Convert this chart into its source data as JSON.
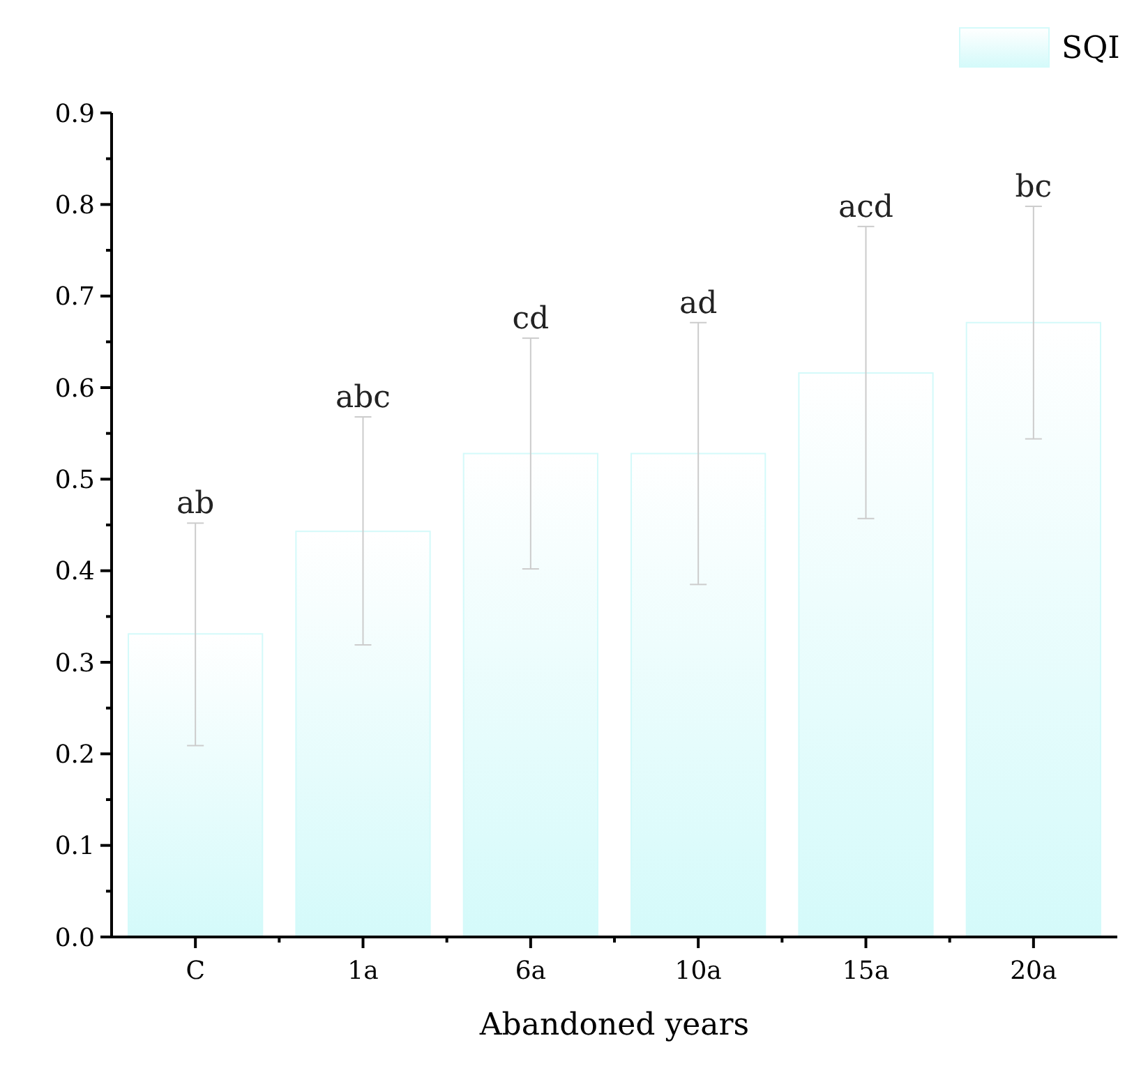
{
  "chart_data": {
    "type": "bar",
    "xlabel": "Abandoned years",
    "categories": [
      "C",
      "1a",
      "6a",
      "10a",
      "15a",
      "20a"
    ],
    "series": [
      {
        "name": "SQI",
        "color": "#d4fafa",
        "values": [
          0.331,
          0.443,
          0.528,
          0.528,
          0.616,
          0.671
        ],
        "errors": [
          [
            0.209,
            0.452
          ],
          [
            0.319,
            0.568
          ],
          [
            0.402,
            0.654
          ],
          [
            0.385,
            0.671
          ],
          [
            0.457,
            0.776
          ],
          [
            0.544,
            0.798
          ]
        ]
      }
    ],
    "annotations": [
      {
        "text": "ab",
        "x": "C",
        "y": 0.452
      },
      {
        "text": "abc",
        "x": "1a",
        "y": 0.568
      },
      {
        "text": "cd",
        "x": "6a",
        "y": 0.654
      },
      {
        "text": "ad",
        "x": "10a",
        "y": 0.671
      },
      {
        "text": "acd",
        "x": "15a",
        "y": 0.776
      },
      {
        "text": "bc",
        "x": "20a",
        "y": 0.798
      }
    ],
    "ylim": [
      0,
      0.9
    ],
    "yticks": [
      {
        "value": 0,
        "label": "0.0"
      },
      0.1,
      0.2,
      0.3,
      0.4,
      0.5,
      0.6,
      0.7,
      0.8,
      0.9
    ],
    "legend": "top right"
  }
}
